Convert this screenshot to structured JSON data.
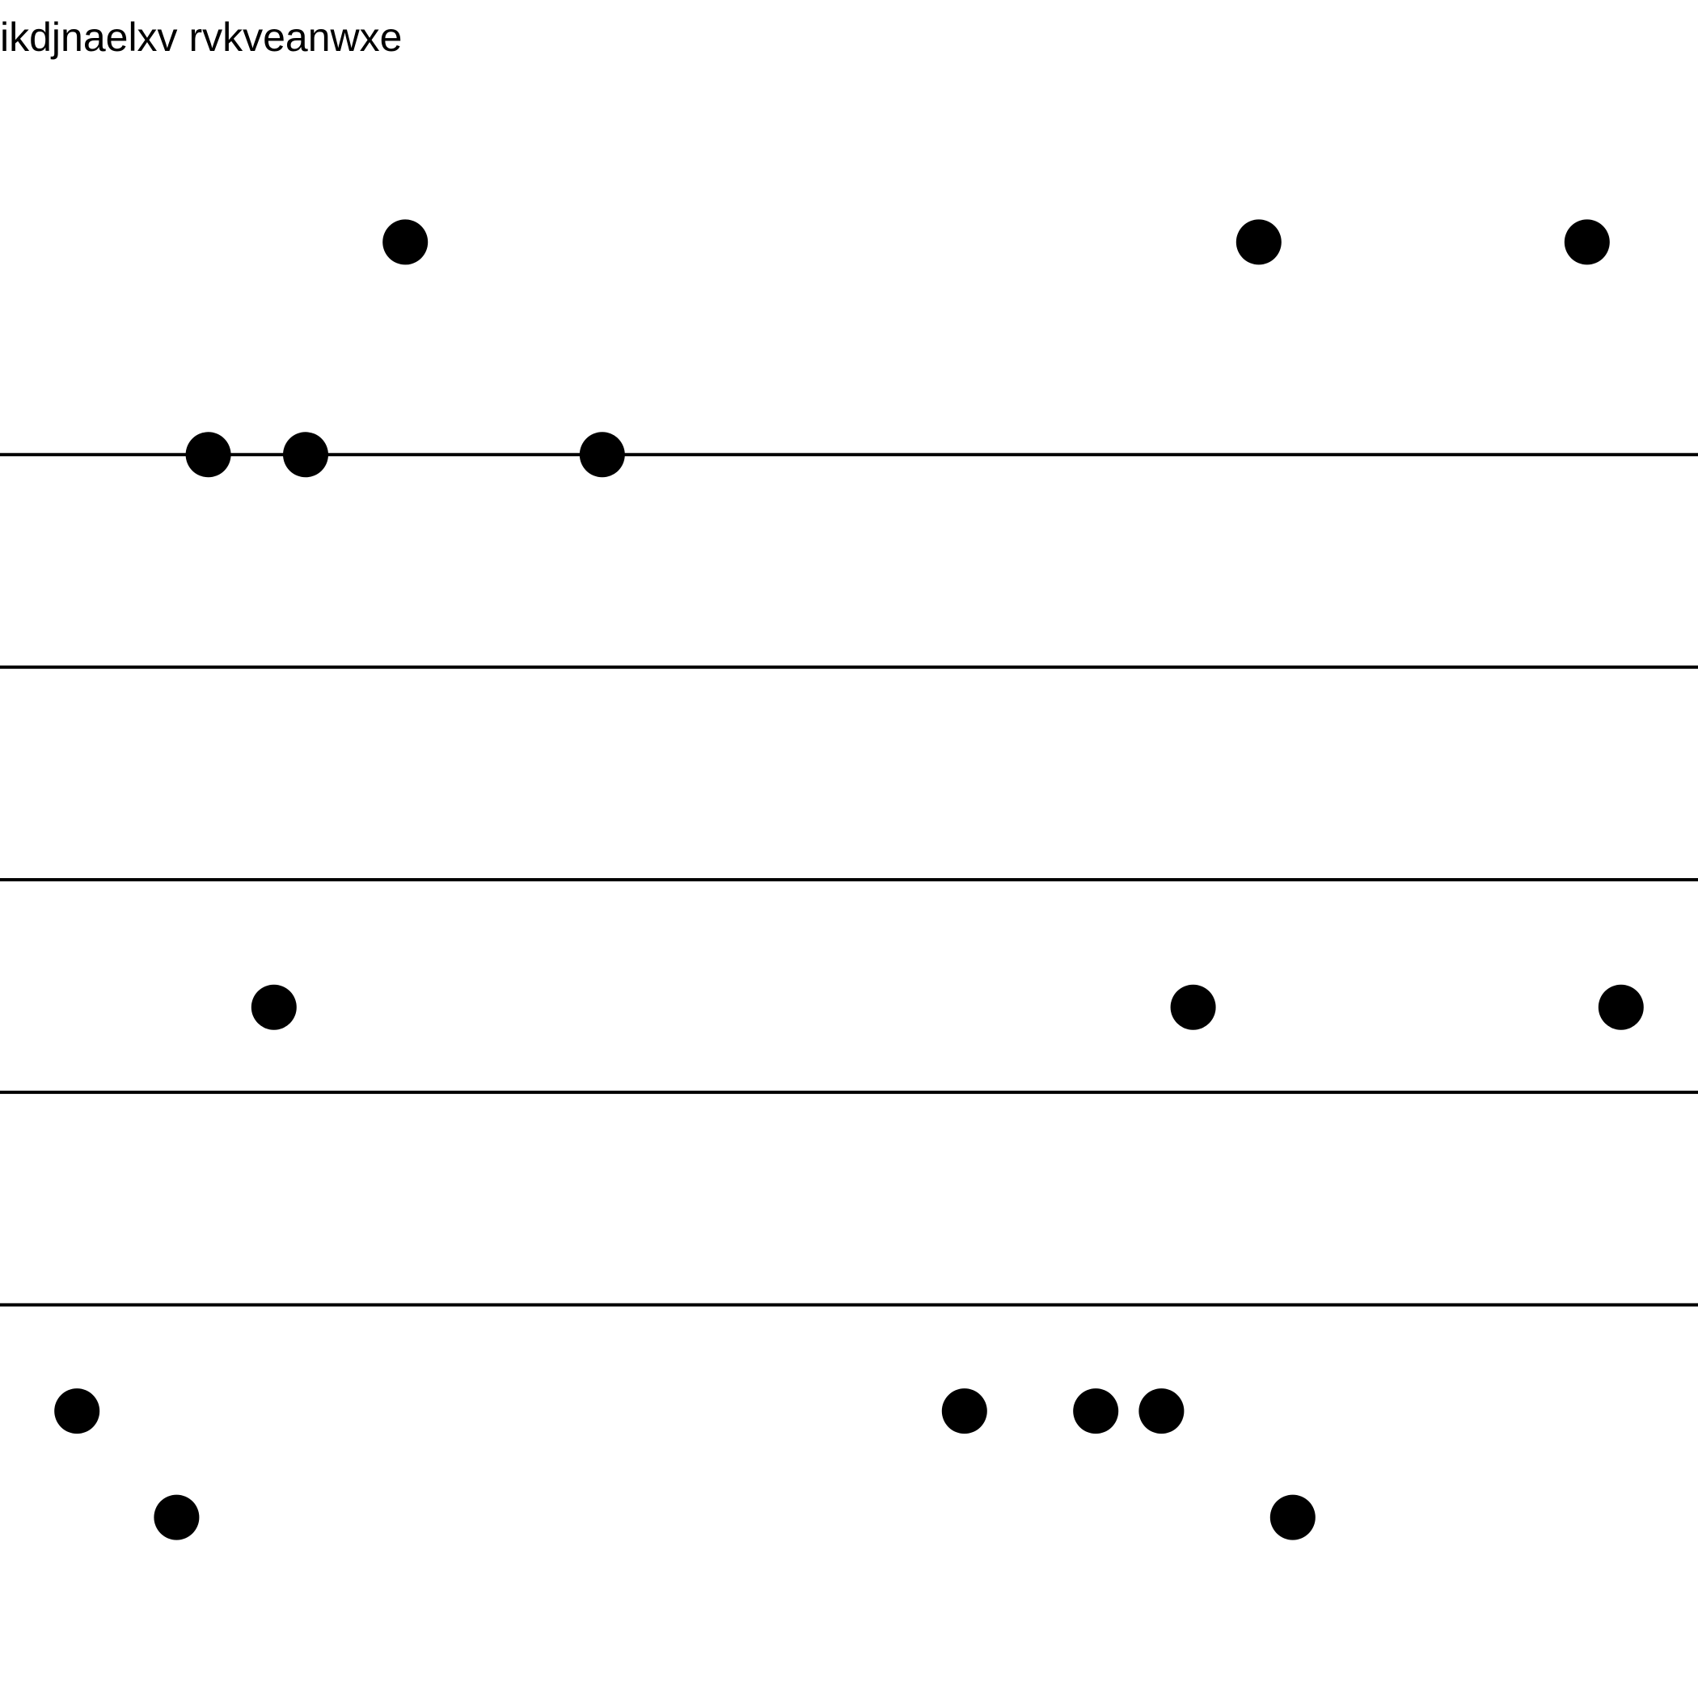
{
  "chart_data": {
    "type": "scatter",
    "title": "ikdjnaelxv rvkveanwxe",
    "xlabel": "",
    "ylabel": "",
    "grid": "horizontal lines only",
    "legend": "none",
    "point_color": "#000000",
    "line_color": "#000000",
    "horizontal_lines_y": [
      1,
      2,
      3,
      4,
      5
    ],
    "points": [
      {
        "x": 17.9,
        "y": 6.0
      },
      {
        "x": 55.6,
        "y": 6.0
      },
      {
        "x": 70.1,
        "y": 6.0
      },
      {
        "x": 9.2,
        "y": 5.0
      },
      {
        "x": 13.5,
        "y": 5.0
      },
      {
        "x": 26.6,
        "y": 5.0
      },
      {
        "x": 12.1,
        "y": 2.4
      },
      {
        "x": 52.7,
        "y": 2.4
      },
      {
        "x": 71.6,
        "y": 2.4
      },
      {
        "x": 3.4,
        "y": 0.5
      },
      {
        "x": 42.6,
        "y": 0.5
      },
      {
        "x": 48.4,
        "y": 0.5
      },
      {
        "x": 51.3,
        "y": 0.5
      },
      {
        "x": 7.8,
        "y": 0.0
      },
      {
        "x": 57.1,
        "y": 0.0
      }
    ],
    "xlim": [
      0,
      75
    ],
    "ylim": [
      -0.5,
      6.5
    ]
  }
}
